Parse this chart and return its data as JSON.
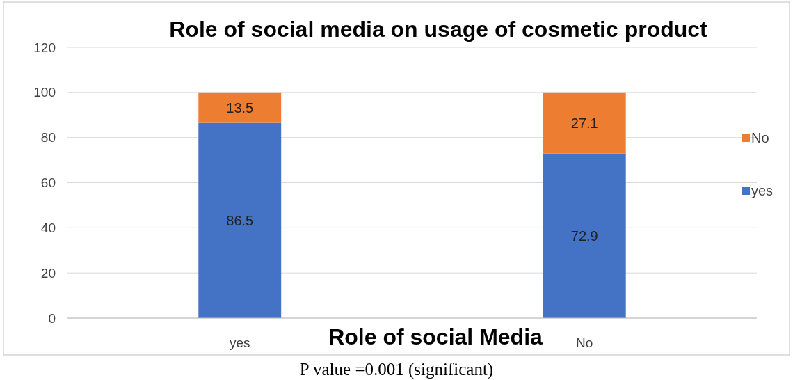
{
  "chart_data": {
    "type": "bar",
    "title": "Role of social media on usage of cosmetic product",
    "xlabel": "Role of social Media",
    "categories": [
      "yes",
      "No"
    ],
    "stacked": true,
    "series": [
      {
        "name": "yes",
        "color": "#4472c4",
        "values": [
          86.5,
          72.9
        ]
      },
      {
        "name": "No",
        "color": "#ed7d31",
        "values": [
          13.5,
          27.1
        ]
      }
    ],
    "ylim": [
      0,
      120
    ],
    "yticks": [
      0,
      20,
      40,
      60,
      80,
      100,
      120
    ],
    "grid": "y",
    "legend": "right",
    "data_labels": true,
    "annotations": [
      "P value =0.001 (significant)"
    ]
  }
}
